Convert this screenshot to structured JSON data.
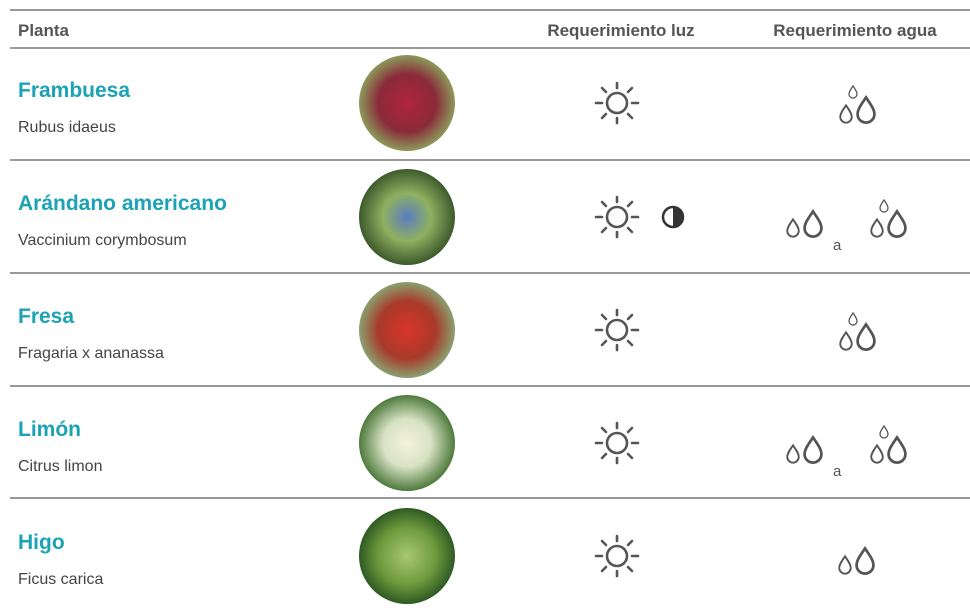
{
  "header": [
    "Planta",
    "Requerimiento luz",
    "Requerimiento agua"
  ],
  "rows": [
    {
      "name": "Frambuesa",
      "scientific": "Rubus idaeus"
    },
    {
      "name": "Arándano americano",
      "scientific": "Vaccinium corymbosum",
      "water_separator": "a"
    },
    {
      "name": "Fresa",
      "scientific": "Fragaria x ananassa"
    },
    {
      "name": "Limón",
      "scientific": "Citrus limon",
      "water_separator": "a"
    },
    {
      "name": "Higo",
      "scientific": "Ficus carica"
    }
  ]
}
